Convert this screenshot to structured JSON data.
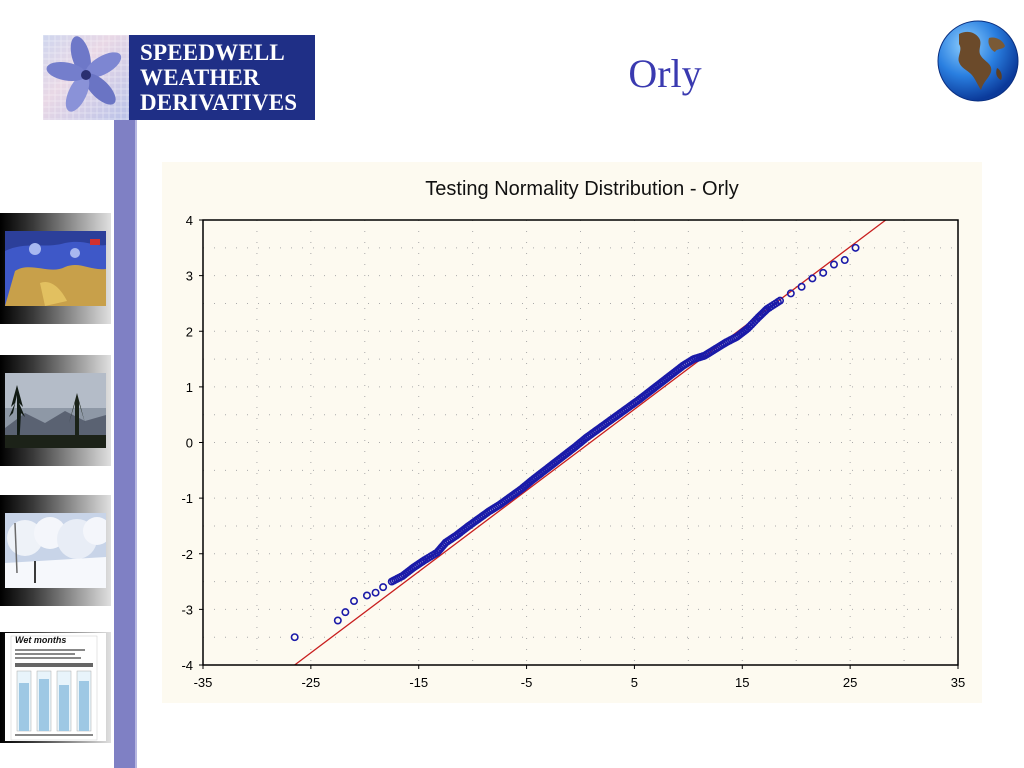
{
  "logo": {
    "lines": [
      "SPEEDWELL",
      "WEATHER",
      "DERIVATIVES"
    ]
  },
  "slide": {
    "title": "Orly"
  },
  "sidebar": {
    "thumbnails": [
      {
        "name": "weather-map-thumbnail",
        "title": ""
      },
      {
        "name": "trees-sky-thumbnail",
        "title": ""
      },
      {
        "name": "snow-trees-thumbnail",
        "title": ""
      },
      {
        "name": "wet-months-thumbnail",
        "title": "Wet months"
      }
    ]
  },
  "colors": {
    "points": "#1a1aa8",
    "line": "#c81e1e",
    "sidebar": "#7f80c4",
    "title": "#3a3ab0"
  },
  "chart_data": {
    "type": "scatter",
    "title": "Testing Normality Distribution - Orly",
    "xlabel": "",
    "ylabel": "",
    "xlim": [
      -35,
      35
    ],
    "ylim": [
      -4,
      4
    ],
    "x_ticks": [
      "-35",
      "-25",
      "-15",
      "-5",
      "5",
      "15",
      "25",
      "35"
    ],
    "y_ticks": [
      "4",
      "3",
      "2",
      "1",
      "0",
      "-1",
      "-2",
      "-3",
      "-4"
    ],
    "grid": true,
    "reference_line": {
      "from": [
        -26.5,
        -4
      ],
      "to": [
        28.3,
        4
      ]
    },
    "points": [
      [
        -26.5,
        -3.5
      ],
      [
        -22.5,
        -3.2
      ],
      [
        -21.8,
        -3.05
      ],
      [
        -21.0,
        -2.85
      ],
      [
        -19.8,
        -2.75
      ],
      [
        -19.0,
        -2.7
      ],
      [
        -18.3,
        -2.6
      ],
      [
        -17.5,
        -2.5
      ],
      [
        -16.5,
        -2.4
      ],
      [
        -15.5,
        -2.25
      ],
      [
        -14.5,
        -2.12
      ],
      [
        -13.3,
        -1.98
      ],
      [
        -12.5,
        -1.8
      ],
      [
        -11.5,
        -1.67
      ],
      [
        -10.5,
        -1.52
      ],
      [
        -9.5,
        -1.38
      ],
      [
        -8.5,
        -1.24
      ],
      [
        -7.5,
        -1.12
      ],
      [
        -6.5,
        -0.98
      ],
      [
        -5.5,
        -0.84
      ],
      [
        -4.5,
        -0.68
      ],
      [
        -3.5,
        -0.53
      ],
      [
        -2.5,
        -0.38
      ],
      [
        -1.5,
        -0.23
      ],
      [
        -0.5,
        -0.08
      ],
      [
        0.5,
        0.08
      ],
      [
        1.5,
        0.22
      ],
      [
        2.5,
        0.36
      ],
      [
        3.5,
        0.5
      ],
      [
        4.5,
        0.64
      ],
      [
        5.5,
        0.78
      ],
      [
        6.5,
        0.93
      ],
      [
        7.5,
        1.08
      ],
      [
        8.5,
        1.23
      ],
      [
        9.5,
        1.38
      ],
      [
        10.5,
        1.5
      ],
      [
        11.5,
        1.56
      ],
      [
        12.5,
        1.68
      ],
      [
        13.5,
        1.8
      ],
      [
        14.5,
        1.9
      ],
      [
        15.5,
        2.05
      ],
      [
        16.5,
        2.25
      ],
      [
        17.3,
        2.4
      ],
      [
        18.5,
        2.55
      ],
      [
        19.5,
        2.68
      ],
      [
        20.5,
        2.8
      ],
      [
        21.5,
        2.95
      ],
      [
        22.5,
        3.05
      ],
      [
        23.5,
        3.2
      ],
      [
        24.5,
        3.28
      ],
      [
        25.5,
        3.5
      ]
    ]
  }
}
